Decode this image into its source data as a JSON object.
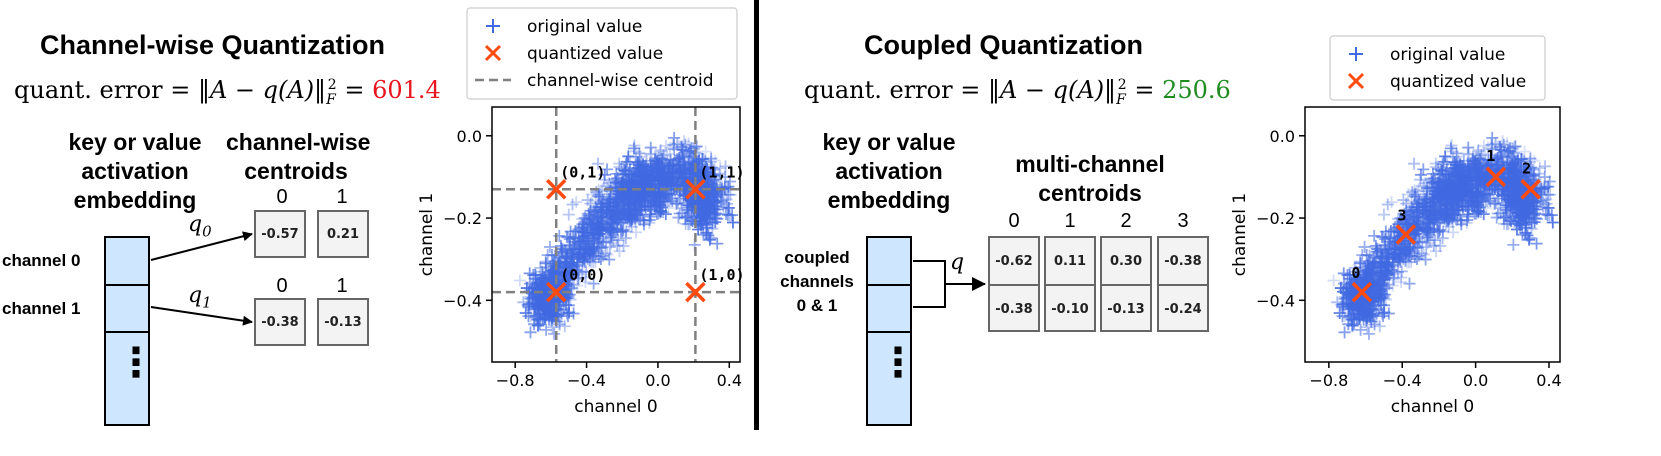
{
  "left": {
    "title": "Channel-wise Quantization",
    "error_prefix": "quant. error = ",
    "error_formula": "‖A − q(A)‖",
    "error_sub": "F",
    "error_sup": "2",
    "error_eq": " = ",
    "error_value": "601.4",
    "error_color": "#e8141e",
    "embedding_label": [
      "key or value",
      "activation",
      "embedding"
    ],
    "channel_labels": [
      "channel 0",
      "channel 1"
    ],
    "dots": "⋮",
    "centroids_label": [
      "channel-wise",
      "centroids"
    ],
    "q_labels": [
      "q",
      "q"
    ],
    "q_subs": [
      "0",
      "1"
    ],
    "centroid_rows": [
      {
        "indices": [
          "0",
          "1"
        ],
        "values": [
          "-0.57",
          "0.21"
        ]
      },
      {
        "indices": [
          "0",
          "1"
        ],
        "values": [
          "-0.38",
          "-0.13"
        ]
      }
    ]
  },
  "right": {
    "title": "Coupled Quantization",
    "error_prefix": "quant. error = ",
    "error_formula": "‖A − q(A)‖",
    "error_sub": "F",
    "error_sup": "2",
    "error_eq": " = ",
    "error_value": "250.6",
    "error_color": "#1e8c1e",
    "embedding_label": [
      "key or value",
      "activation",
      "embedding"
    ],
    "coupled_label": [
      "coupled",
      "channels",
      "0 & 1"
    ],
    "dots": "⋮",
    "q_label": "q",
    "centroids_label": [
      "multi-channel",
      "centroids"
    ],
    "centroid_cols": [
      {
        "index": "0",
        "values": [
          "-0.62",
          "-0.38"
        ]
      },
      {
        "index": "1",
        "values": [
          "0.11",
          "-0.10"
        ]
      },
      {
        "index": "2",
        "values": [
          "0.30",
          "-0.13"
        ]
      },
      {
        "index": "3",
        "values": [
          "-0.38",
          "-0.24"
        ]
      }
    ]
  },
  "chart_data": [
    {
      "type": "scatter",
      "xlabel": "channel 0",
      "ylabel": "channel 1",
      "xlim": [
        -0.93,
        0.46
      ],
      "ylim": [
        -0.55,
        0.07
      ],
      "xticks": [
        "−0.8",
        "−0.4",
        "0.0",
        "0.4"
      ],
      "xtick_values": [
        -0.8,
        -0.4,
        0.0,
        0.4
      ],
      "yticks": [
        "0.0",
        "−0.2",
        "−0.4"
      ],
      "ytick_values": [
        0.0,
        -0.2,
        -0.4
      ],
      "grid": false,
      "legend": "above-right",
      "legend_entries": [
        "original value",
        "quantized value",
        "channel-wise centroid"
      ],
      "colors": {
        "original": "#4169e1",
        "quantized": "#ff4a10",
        "centroid": "#808080"
      },
      "centroid_lines": {
        "x": [
          -0.57,
          0.21
        ],
        "y": [
          -0.38,
          -0.13
        ]
      },
      "quantized_points": [
        {
          "x": -0.57,
          "y": -0.38,
          "label": "(0,0)"
        },
        {
          "x": -0.57,
          "y": -0.13,
          "label": "(0,1)"
        },
        {
          "x": 0.21,
          "y": -0.13,
          "label": "(1,1)"
        },
        {
          "x": 0.21,
          "y": -0.38,
          "label": "(1,0)"
        }
      ]
    },
    {
      "type": "scatter",
      "xlabel": "channel 0",
      "ylabel": "channel 1",
      "xlim": [
        -0.93,
        0.46
      ],
      "ylim": [
        -0.55,
        0.07
      ],
      "xticks": [
        "−0.8",
        "−0.4",
        "0.0",
        "0.4"
      ],
      "xtick_values": [
        -0.8,
        -0.4,
        0.0,
        0.4
      ],
      "yticks": [
        "0.0",
        "−0.2",
        "−0.4"
      ],
      "ytick_values": [
        0.0,
        -0.2,
        -0.4
      ],
      "grid": false,
      "legend": "above-right",
      "legend_entries": [
        "original value",
        "quantized value"
      ],
      "colors": {
        "original": "#4169e1",
        "quantized": "#ff4a10"
      },
      "quantized_points": [
        {
          "x": -0.62,
          "y": -0.38,
          "label": "0"
        },
        {
          "x": 0.11,
          "y": -0.1,
          "label": "1"
        },
        {
          "x": 0.3,
          "y": -0.13,
          "label": "2"
        },
        {
          "x": -0.38,
          "y": -0.24,
          "label": "3"
        }
      ]
    }
  ]
}
